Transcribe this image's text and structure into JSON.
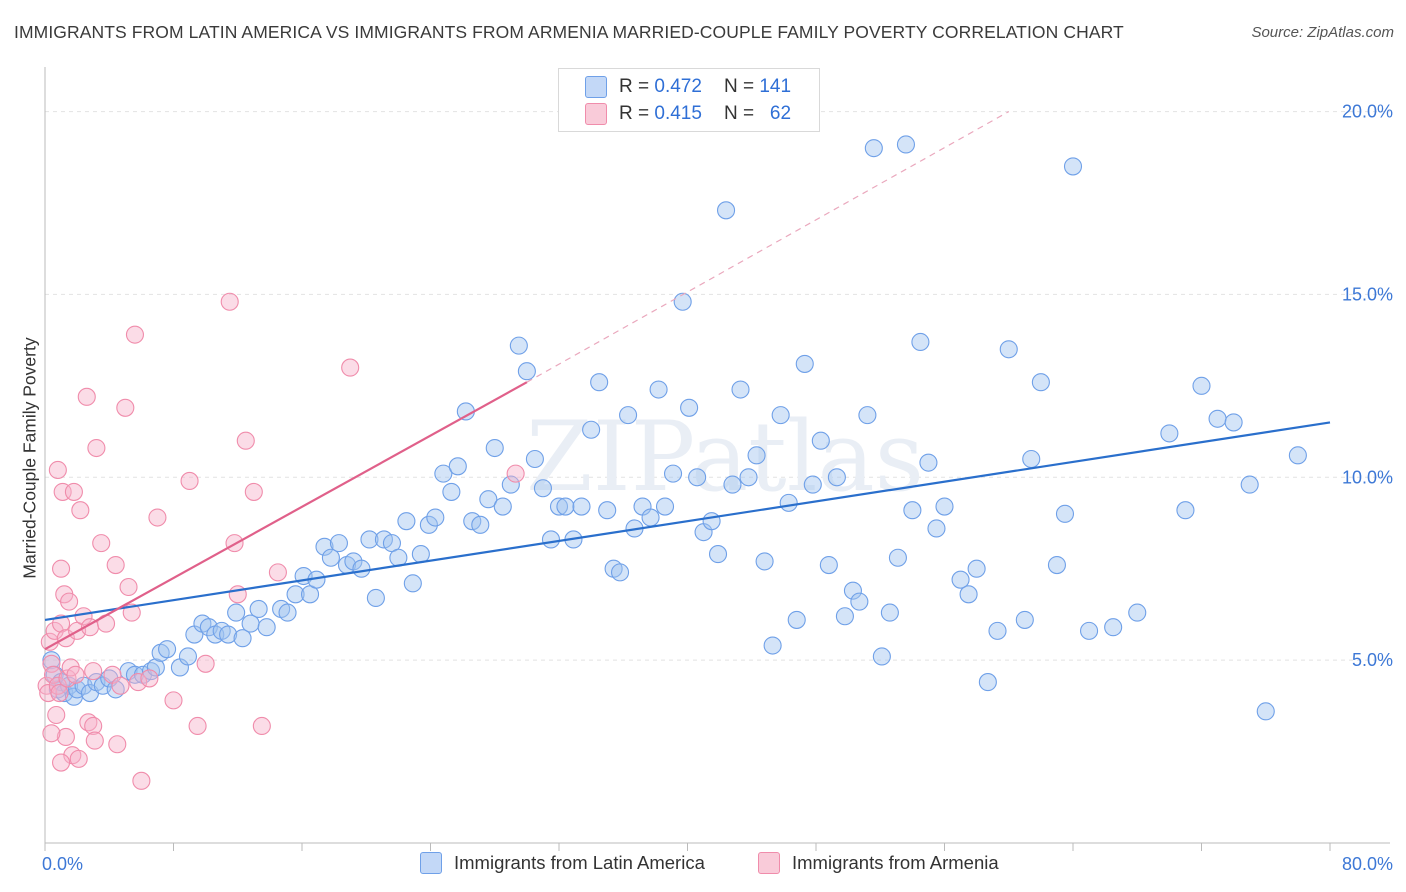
{
  "chart_data": {
    "type": "scatter",
    "title": "IMMIGRANTS FROM LATIN AMERICA VS IMMIGRANTS FROM ARMENIA MARRIED-COUPLE FAMILY POVERTY CORRELATION CHART",
    "source": "Source: ZipAtlas.com",
    "xlabel": "",
    "ylabel": "Married-Couple Family Poverty",
    "xlim": [
      0,
      80
    ],
    "ylim": [
      0,
      21
    ],
    "x_tick_labels": [
      {
        "value": 0,
        "label": "0.0%"
      },
      {
        "value": 80,
        "label": "80.0%"
      }
    ],
    "y_tick_labels": [
      {
        "value": 5,
        "label": "5.0%"
      },
      {
        "value": 10,
        "label": "10.0%"
      },
      {
        "value": 15,
        "label": "15.0%"
      },
      {
        "value": 20,
        "label": "20.0%"
      }
    ],
    "watermark": "ZIPatlas",
    "legend": [
      {
        "name": "Immigrants from Latin America",
        "r_label": "R =",
        "r_value": "0.472",
        "n_label": "N =",
        "n_value": "141",
        "color": "#6fa0e8"
      },
      {
        "name": "Immigrants from Armenia",
        "r_label": "R =",
        "r_value": "0.415",
        "n_label": "N =",
        "n_value": "62",
        "color": "#f08cab"
      }
    ],
    "series": [
      {
        "name": "Immigrants from Latin America",
        "color": "#6fa0e8",
        "line_color": "#2a6fcc",
        "trend": {
          "x": [
            0,
            80
          ],
          "y": [
            6.1,
            11.5
          ]
        },
        "points": [
          [
            0.4,
            5.0
          ],
          [
            0.6,
            4.6
          ],
          [
            0.8,
            4.2
          ],
          [
            1.0,
            4.4
          ],
          [
            1.2,
            4.1
          ],
          [
            1.5,
            4.3
          ],
          [
            1.8,
            4.0
          ],
          [
            2.0,
            4.2
          ],
          [
            2.4,
            4.3
          ],
          [
            2.8,
            4.1
          ],
          [
            3.2,
            4.4
          ],
          [
            3.6,
            4.3
          ],
          [
            4.0,
            4.5
          ],
          [
            4.4,
            4.2
          ],
          [
            5.2,
            4.7
          ],
          [
            5.6,
            4.6
          ],
          [
            6.1,
            4.6
          ],
          [
            6.6,
            4.7
          ],
          [
            6.9,
            4.8
          ],
          [
            7.2,
            5.2
          ],
          [
            7.6,
            5.3
          ],
          [
            8.4,
            4.8
          ],
          [
            8.9,
            5.1
          ],
          [
            9.3,
            5.7
          ],
          [
            9.8,
            6.0
          ],
          [
            10.2,
            5.9
          ],
          [
            10.6,
            5.7
          ],
          [
            11.0,
            5.8
          ],
          [
            11.4,
            5.7
          ],
          [
            11.9,
            6.3
          ],
          [
            12.3,
            5.6
          ],
          [
            12.8,
            6.0
          ],
          [
            13.3,
            6.4
          ],
          [
            13.8,
            5.9
          ],
          [
            14.7,
            6.4
          ],
          [
            15.1,
            6.3
          ],
          [
            15.6,
            6.8
          ],
          [
            16.1,
            7.3
          ],
          [
            16.5,
            6.8
          ],
          [
            16.9,
            7.2
          ],
          [
            17.4,
            8.1
          ],
          [
            17.8,
            7.8
          ],
          [
            18.3,
            8.2
          ],
          [
            18.8,
            7.6
          ],
          [
            19.2,
            7.7
          ],
          [
            19.7,
            7.5
          ],
          [
            20.2,
            8.3
          ],
          [
            20.6,
            6.7
          ],
          [
            21.1,
            8.3
          ],
          [
            21.6,
            8.2
          ],
          [
            22.0,
            7.8
          ],
          [
            22.5,
            8.8
          ],
          [
            22.9,
            7.1
          ],
          [
            23.4,
            7.9
          ],
          [
            23.9,
            8.7
          ],
          [
            24.3,
            8.9
          ],
          [
            24.8,
            10.1
          ],
          [
            25.3,
            9.6
          ],
          [
            25.7,
            10.3
          ],
          [
            26.2,
            11.8
          ],
          [
            26.6,
            8.8
          ],
          [
            27.1,
            8.7
          ],
          [
            27.6,
            9.4
          ],
          [
            28.0,
            10.8
          ],
          [
            28.5,
            9.2
          ],
          [
            29.0,
            9.8
          ],
          [
            29.5,
            13.6
          ],
          [
            30.0,
            12.9
          ],
          [
            30.5,
            10.5
          ],
          [
            31.0,
            9.7
          ],
          [
            31.5,
            8.3
          ],
          [
            32.0,
            9.2
          ],
          [
            32.4,
            9.2
          ],
          [
            32.9,
            8.3
          ],
          [
            33.4,
            9.2
          ],
          [
            34.0,
            11.3
          ],
          [
            34.5,
            12.6
          ],
          [
            35.0,
            9.1
          ],
          [
            35.4,
            7.5
          ],
          [
            35.8,
            7.4
          ],
          [
            36.3,
            11.7
          ],
          [
            36.7,
            8.6
          ],
          [
            37.2,
            9.2
          ],
          [
            37.7,
            8.9
          ],
          [
            38.2,
            12.4
          ],
          [
            38.6,
            9.2
          ],
          [
            39.1,
            10.1
          ],
          [
            39.7,
            14.8
          ],
          [
            40.1,
            11.9
          ],
          [
            40.6,
            10.0
          ],
          [
            41.0,
            8.5
          ],
          [
            41.5,
            8.8
          ],
          [
            41.9,
            7.9
          ],
          [
            42.4,
            17.3
          ],
          [
            42.8,
            9.8
          ],
          [
            43.3,
            12.4
          ],
          [
            43.8,
            10.0
          ],
          [
            44.3,
            10.6
          ],
          [
            44.8,
            7.7
          ],
          [
            45.3,
            5.4
          ],
          [
            45.8,
            11.7
          ],
          [
            46.3,
            9.3
          ],
          [
            46.8,
            6.1
          ],
          [
            47.3,
            13.1
          ],
          [
            47.8,
            9.8
          ],
          [
            48.3,
            11.0
          ],
          [
            48.8,
            7.6
          ],
          [
            49.3,
            10.0
          ],
          [
            49.8,
            6.2
          ],
          [
            50.3,
            6.9
          ],
          [
            50.7,
            6.6
          ],
          [
            51.2,
            11.7
          ],
          [
            51.6,
            19.0
          ],
          [
            52.1,
            5.1
          ],
          [
            52.6,
            6.3
          ],
          [
            53.1,
            7.8
          ],
          [
            53.6,
            19.1
          ],
          [
            54.0,
            9.1
          ],
          [
            54.5,
            13.7
          ],
          [
            55.0,
            10.4
          ],
          [
            55.5,
            8.6
          ],
          [
            56.0,
            9.2
          ],
          [
            57.0,
            7.2
          ],
          [
            57.5,
            6.8
          ],
          [
            58.0,
            7.5
          ],
          [
            58.7,
            4.4
          ],
          [
            59.3,
            5.8
          ],
          [
            60.0,
            13.5
          ],
          [
            61.0,
            6.1
          ],
          [
            61.4,
            10.5
          ],
          [
            62.0,
            12.6
          ],
          [
            63.0,
            7.6
          ],
          [
            63.5,
            9.0
          ],
          [
            64.0,
            18.5
          ],
          [
            65.0,
            5.8
          ],
          [
            66.5,
            5.9
          ],
          [
            68.0,
            6.3
          ],
          [
            70.0,
            11.2
          ],
          [
            71.0,
            9.1
          ],
          [
            72.0,
            12.5
          ],
          [
            73.0,
            11.6
          ],
          [
            74.0,
            11.5
          ],
          [
            75.0,
            9.8
          ],
          [
            78.0,
            10.6
          ],
          [
            76.0,
            3.6
          ]
        ]
      },
      {
        "name": "Immigrants from Armenia",
        "color": "#f08cab",
        "line_color": "#e0608a",
        "trend": {
          "x": [
            0,
            30
          ],
          "y": [
            5.3,
            12.6
          ],
          "dashed_to": {
            "x": 60,
            "y": 20.0
          }
        },
        "points": [
          [
            0.1,
            4.3
          ],
          [
            0.2,
            4.1
          ],
          [
            0.3,
            5.5
          ],
          [
            0.4,
            4.9
          ],
          [
            0.5,
            4.6
          ],
          [
            0.6,
            5.8
          ],
          [
            0.7,
            3.5
          ],
          [
            0.8,
            4.3
          ],
          [
            0.9,
            4.1
          ],
          [
            1.0,
            6.0
          ],
          [
            0.8,
            10.2
          ],
          [
            1.0,
            7.5
          ],
          [
            1.1,
            9.6
          ],
          [
            1.2,
            6.8
          ],
          [
            1.3,
            5.6
          ],
          [
            1.4,
            4.5
          ],
          [
            1.5,
            6.6
          ],
          [
            1.6,
            4.8
          ],
          [
            1.8,
            9.6
          ],
          [
            2.0,
            5.8
          ],
          [
            2.2,
            9.1
          ],
          [
            2.4,
            6.2
          ],
          [
            2.6,
            12.2
          ],
          [
            2.8,
            5.9
          ],
          [
            3.0,
            4.7
          ],
          [
            3.2,
            10.8
          ],
          [
            3.5,
            8.2
          ],
          [
            3.8,
            6.0
          ],
          [
            4.2,
            4.6
          ],
          [
            4.4,
            7.6
          ],
          [
            4.7,
            4.3
          ],
          [
            5.0,
            11.9
          ],
          [
            5.2,
            7.0
          ],
          [
            5.4,
            6.3
          ],
          [
            5.6,
            13.9
          ],
          [
            5.8,
            4.4
          ],
          [
            6.0,
            1.7
          ],
          [
            6.5,
            4.5
          ],
          [
            7.0,
            8.9
          ],
          [
            8.0,
            3.9
          ],
          [
            9.0,
            9.9
          ],
          [
            9.5,
            3.2
          ],
          [
            10.0,
            4.9
          ],
          [
            11.5,
            14.8
          ],
          [
            11.8,
            8.2
          ],
          [
            12.0,
            6.8
          ],
          [
            12.5,
            11.0
          ],
          [
            13.0,
            9.6
          ],
          [
            13.5,
            3.2
          ],
          [
            14.5,
            7.4
          ],
          [
            1.3,
            2.9
          ],
          [
            1.7,
            2.4
          ],
          [
            2.1,
            2.3
          ],
          [
            2.7,
            3.3
          ],
          [
            3.0,
            3.2
          ],
          [
            3.1,
            2.8
          ],
          [
            4.5,
            2.7
          ],
          [
            1.0,
            2.2
          ],
          [
            0.4,
            3.0
          ],
          [
            19.0,
            13.0
          ],
          [
            29.3,
            10.1
          ],
          [
            1.9,
            4.6
          ]
        ]
      }
    ]
  }
}
